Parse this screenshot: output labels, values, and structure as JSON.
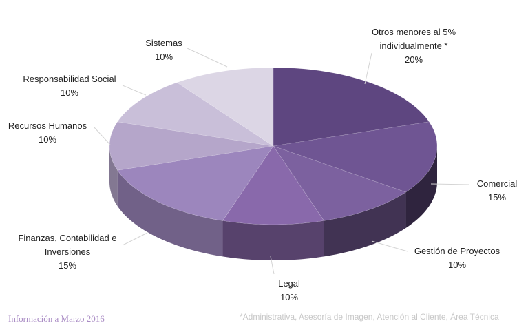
{
  "chart_data": {
    "type": "pie",
    "title": "",
    "categories": [
      "Otros menores al 5% individualmente *",
      "Comercial",
      "Gestión de Proyectos",
      "Legal",
      "Finanzas, Contabilidad e Inversiones",
      "Recursos Humanos",
      "Responsabilidad Social",
      "Sistemas"
    ],
    "values": [
      20,
      15,
      10,
      10,
      15,
      10,
      10,
      10
    ],
    "value_labels": [
      "20%",
      "15%",
      "10%",
      "10%",
      "15%",
      "10%",
      "10%",
      "10%"
    ],
    "colors": [
      "#5e4680",
      "#6f5593",
      "#7c619f",
      "#8969ab",
      "#9c86bd",
      "#b5a6ca",
      "#c9bfd9",
      "#dcd6e5"
    ],
    "style": "3d-pie",
    "legend": "none"
  },
  "labels": {
    "otros_line1": "Otros menores al 5%",
    "otros_line2": "individualmente *",
    "otros_pct": "20%",
    "comercial": "Comercial",
    "comercial_pct": "15%",
    "gestion": "Gestión de Proyectos",
    "gestion_pct": "10%",
    "legal": "Legal",
    "legal_pct": "10%",
    "finanzas_line1": "Finanzas, Contabilidad e",
    "finanzas_line2": "Inversiones",
    "finanzas_pct": "15%",
    "rrhh": "Recursos Humanos",
    "rrhh_pct": "10%",
    "resp": "Responsabilidad Social",
    "resp_pct": "10%",
    "sistemas": "Sistemas",
    "sistemas_pct": "10%"
  },
  "footnote": "*Administrativa,  Asesoría de Imagen, Atención al Cliente, Área Técnica",
  "source_note": "Información a Marzo 2016"
}
